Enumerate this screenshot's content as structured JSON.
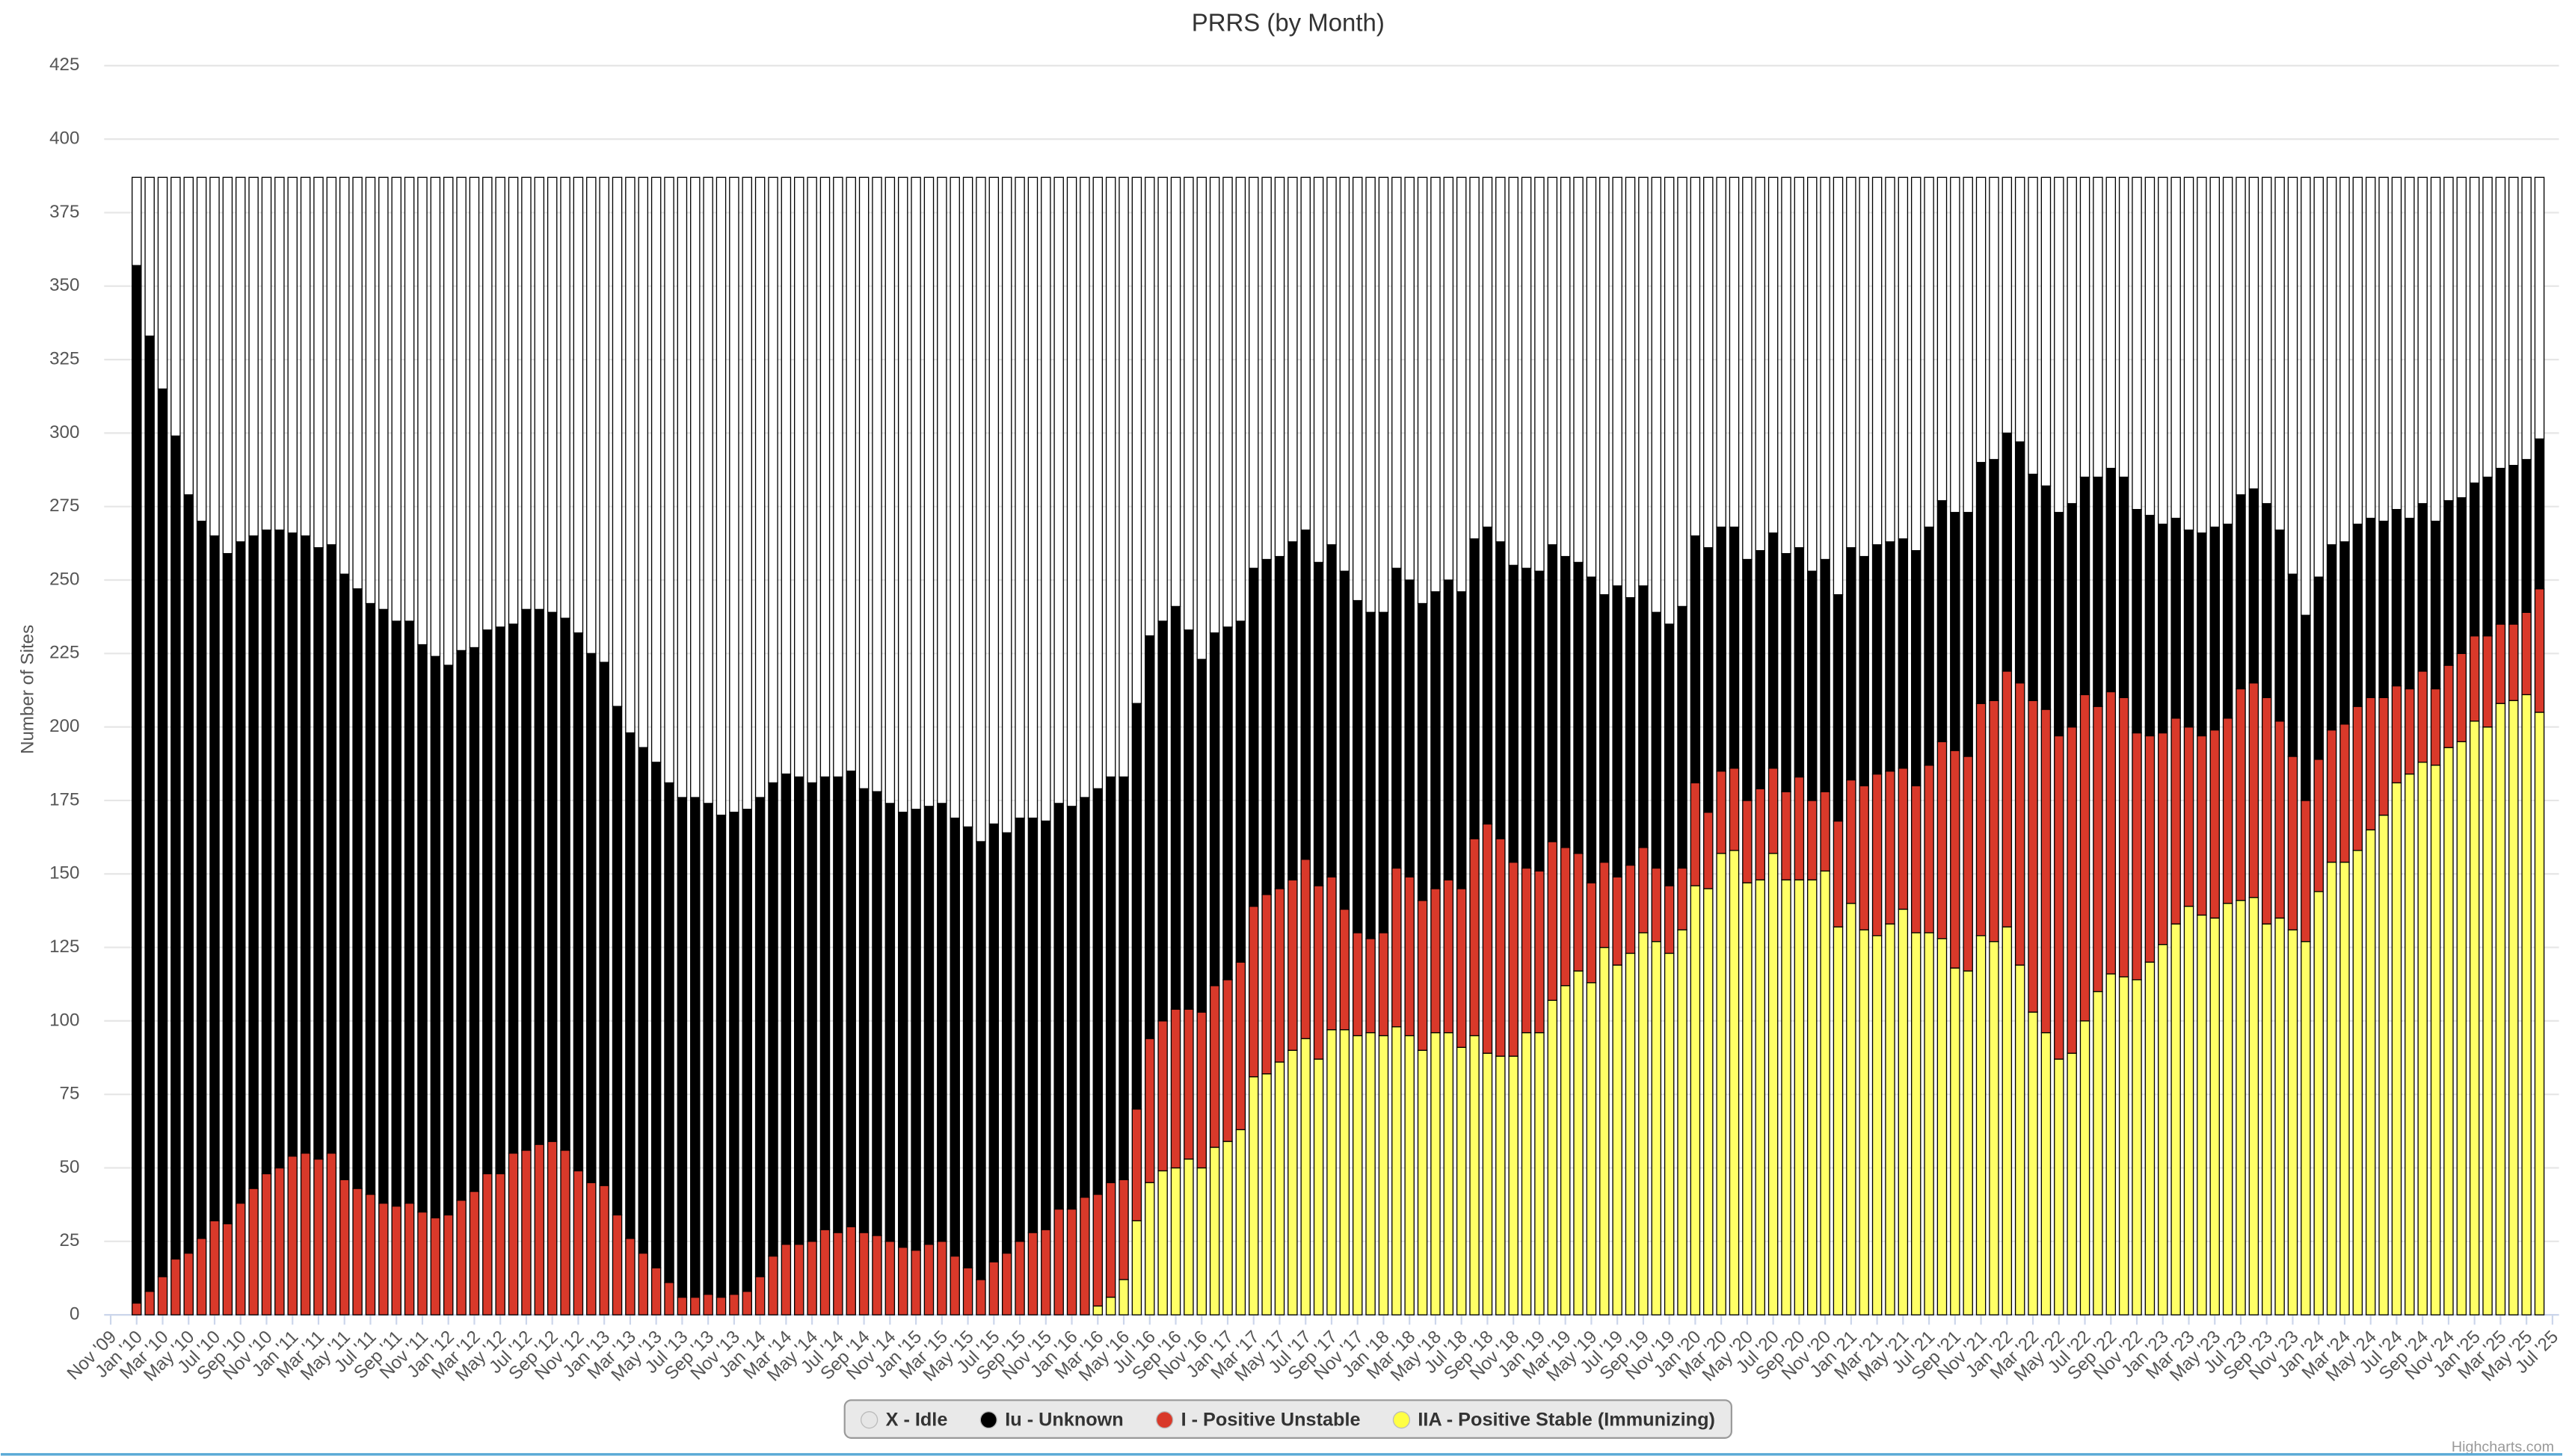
{
  "chart_data": {
    "type": "stacked-bar",
    "title": "PRRS (by Month)",
    "y_axis_label": "Number of Sites",
    "credits": "Highcharts.com",
    "ylim": [
      0,
      425
    ],
    "yticks": [
      0,
      25,
      50,
      75,
      100,
      125,
      150,
      175,
      200,
      225,
      250,
      275,
      300,
      325,
      350,
      375,
      400,
      425
    ],
    "grid": true,
    "legend": "bottom",
    "categories": [
      "Nov '09",
      null,
      "Jan '10",
      null,
      "Mar '10",
      null,
      "May '10",
      null,
      "Jul '10",
      null,
      "Sep '10",
      null,
      "Nov '10",
      null,
      "Jan '11",
      null,
      "Mar '11",
      null,
      "May '11",
      null,
      "Jul '11",
      null,
      "Sep '11",
      null,
      "Nov '11",
      null,
      "Jan '12",
      null,
      "Mar '12",
      null,
      "May '12",
      null,
      "Jul '12",
      null,
      "Sep '12",
      null,
      "Nov '12",
      null,
      "Jan '13",
      null,
      "Mar '13",
      null,
      "May '13",
      null,
      "Jul '13",
      null,
      "Sep '13",
      null,
      "Nov '13",
      null,
      "Jan '14",
      null,
      "Mar '14",
      null,
      "May '14",
      null,
      "Jul '14",
      null,
      "Sep '14",
      null,
      "Nov '14",
      null,
      "Jan '15",
      null,
      "Mar '15",
      null,
      "May '15",
      null,
      "Jul '15",
      null,
      "Sep '15",
      null,
      "Nov '15",
      null,
      "Jan '16",
      null,
      "Mar '16",
      null,
      "May '16",
      null,
      "Jul '16",
      null,
      "Sep '16",
      null,
      "Nov '16",
      null,
      "Jan '17",
      null,
      "Mar '17",
      null,
      "May '17",
      null,
      "Jul '17",
      null,
      "Sep '17",
      null,
      "Nov '17",
      null,
      "Jan '18",
      null,
      "Mar '18",
      null,
      "May '18",
      null,
      "Jul '18",
      null,
      "Sep '18",
      null,
      "Nov '18",
      null,
      "Jan '19",
      null,
      "Mar '19",
      null,
      "May '19",
      null,
      "Jul '19",
      null,
      "Sep '19",
      null,
      "Nov '19",
      null,
      "Jan '20",
      null,
      "Mar '20",
      null,
      "May '20",
      null,
      "Jul '20",
      null,
      "Sep '20",
      null,
      "Nov '20",
      null,
      "Jan '21",
      null,
      "Mar '21",
      null,
      "May '21",
      null,
      "Jul '21",
      null,
      "Sep '21",
      null,
      "Nov '21",
      null,
      "Jan '22",
      null,
      "Mar '22",
      null,
      "May '22",
      null,
      "Jul '22",
      null,
      "Sep '22",
      null,
      "Nov '22",
      null,
      "Jan '23",
      null,
      "Mar '23",
      null,
      "May '23",
      null,
      "Jul '23",
      null,
      "Sep '23",
      null,
      "Nov '23",
      null,
      "Jan '24",
      null,
      "Mar '24",
      null,
      "May '24",
      null,
      "Jul '24",
      null,
      "Sep '24",
      null,
      "Nov '24",
      null,
      "Jan '25",
      null,
      "Mar '25",
      null,
      "May '25",
      null,
      "Jul '25"
    ],
    "series": [
      {
        "name": "X - Idle",
        "color": "#ffffff",
        "legend_color": "#e6e6e6",
        "values": [
          null,
          null,
          30,
          54,
          72,
          88,
          108,
          117,
          122,
          128,
          124,
          122,
          120,
          120,
          121,
          122,
          126,
          125,
          135,
          140,
          145,
          147,
          151,
          151,
          159,
          163,
          166,
          161,
          160,
          154,
          153,
          152,
          147,
          147,
          148,
          150,
          155,
          162,
          165,
          180,
          189,
          194,
          199,
          206,
          211,
          211,
          213,
          217,
          216,
          215,
          211,
          206,
          203,
          204,
          206,
          204,
          204,
          202,
          208,
          209,
          213,
          216,
          215,
          214,
          213,
          218,
          221,
          226,
          220,
          223,
          218,
          218,
          219,
          213,
          214,
          211,
          208,
          204,
          204,
          179,
          156,
          151,
          146,
          154,
          164,
          155,
          153,
          151,
          133,
          130,
          129,
          124,
          120,
          131,
          125,
          134,
          144,
          148,
          148,
          133,
          137,
          145,
          141,
          137,
          141,
          123,
          119,
          124,
          132,
          133,
          134,
          125,
          129,
          131,
          136,
          142,
          139,
          143,
          139,
          148,
          152,
          146,
          122,
          126,
          119,
          119,
          130,
          127,
          121,
          128,
          126,
          134,
          130,
          142,
          126,
          129,
          125,
          124,
          123,
          127,
          119,
          110,
          114,
          114,
          97,
          96,
          87,
          90,
          101,
          105,
          114,
          111,
          102,
          102,
          99,
          102,
          113,
          115,
          118,
          116,
          120,
          121,
          119,
          118,
          108,
          106,
          111,
          120,
          135,
          149,
          136,
          125,
          124,
          118,
          116,
          117,
          113,
          116,
          111,
          117,
          110,
          109,
          104,
          102,
          99,
          98,
          96,
          89,
          null
        ]
      },
      {
        "name": "Iu - Unknown",
        "color": "#000000",
        "legend_color": "#000000",
        "values": [
          null,
          null,
          353,
          325,
          302,
          280,
          258,
          244,
          233,
          228,
          225,
          222,
          219,
          217,
          212,
          210,
          208,
          207,
          206,
          204,
          201,
          202,
          199,
          198,
          193,
          191,
          187,
          187,
          185,
          185,
          186,
          180,
          184,
          182,
          180,
          181,
          183,
          180,
          178,
          173,
          172,
          172,
          172,
          170,
          170,
          170,
          167,
          164,
          164,
          164,
          163,
          161,
          160,
          159,
          156,
          154,
          155,
          155,
          151,
          151,
          149,
          148,
          150,
          149,
          149,
          149,
          150,
          149,
          149,
          143,
          144,
          141,
          139,
          138,
          137,
          136,
          138,
          138,
          137,
          138,
          137,
          136,
          137,
          129,
          120,
          120,
          120,
          116,
          115,
          114,
          113,
          115,
          112,
          110,
          113,
          115,
          113,
          111,
          109,
          102,
          101,
          101,
          101,
          102,
          101,
          102,
          101,
          101,
          101,
          102,
          102,
          101,
          99,
          99,
          104,
          91,
          99,
          91,
          89,
          87,
          89,
          89,
          84,
          90,
          83,
          82,
          82,
          81,
          80,
          81,
          78,
          78,
          79,
          77,
          79,
          78,
          78,
          78,
          78,
          80,
          81,
          82,
          81,
          83,
          82,
          82,
          81,
          82,
          77,
          76,
          76,
          76,
          74,
          78,
          76,
          75,
          76,
          75,
          71,
          68,
          67,
          69,
          69,
          66,
          66,
          66,
          66,
          65,
          62,
          63,
          62,
          63,
          62,
          62,
          61,
          60,
          60,
          58,
          57,
          57,
          56,
          53,
          52,
          54,
          53,
          54,
          52,
          51,
          null
        ]
      },
      {
        "name": "I - Positive Unstable",
        "color": "#d9392a",
        "legend_color": "#d9392a",
        "values": [
          null,
          null,
          4,
          8,
          13,
          19,
          21,
          26,
          32,
          31,
          38,
          43,
          48,
          50,
          54,
          55,
          53,
          55,
          46,
          43,
          41,
          38,
          37,
          38,
          35,
          33,
          34,
          39,
          42,
          48,
          48,
          55,
          56,
          58,
          59,
          56,
          49,
          45,
          44,
          34,
          26,
          21,
          16,
          11,
          6,
          6,
          7,
          6,
          7,
          8,
          13,
          20,
          24,
          24,
          25,
          29,
          28,
          30,
          28,
          27,
          25,
          23,
          22,
          24,
          25,
          20,
          16,
          12,
          18,
          21,
          25,
          28,
          29,
          36,
          36,
          40,
          38,
          39,
          34,
          38,
          49,
          51,
          54,
          51,
          53,
          55,
          55,
          57,
          58,
          61,
          59,
          58,
          61,
          59,
          52,
          41,
          35,
          32,
          35,
          54,
          54,
          51,
          49,
          52,
          54,
          67,
          78,
          74,
          66,
          56,
          55,
          54,
          47,
          40,
          34,
          29,
          30,
          30,
          29,
          25,
          23,
          21,
          35,
          26,
          28,
          28,
          28,
          31,
          29,
          30,
          35,
          27,
          27,
          36,
          42,
          49,
          55,
          52,
          48,
          50,
          57,
          67,
          74,
          73,
          79,
          82,
          87,
          96,
          106,
          110,
          110,
          111,
          111,
          97,
          96,
          95,
          84,
          77,
          72,
          70,
          61,
          61,
          64,
          63,
          72,
          73,
          77,
          67,
          59,
          48,
          45,
          45,
          47,
          49,
          45,
          40,
          33,
          29,
          31,
          26,
          28,
          30,
          29,
          31,
          27,
          26,
          28,
          42,
          null
        ]
      },
      {
        "name": "IIA - Positive Stable (Immunizing)",
        "color": "#ffff66",
        "legend_color": "#ffff44",
        "values": [
          null,
          null,
          0,
          0,
          0,
          0,
          0,
          0,
          0,
          0,
          0,
          0,
          0,
          0,
          0,
          0,
          0,
          0,
          0,
          0,
          0,
          0,
          0,
          0,
          0,
          0,
          0,
          0,
          0,
          0,
          0,
          0,
          0,
          0,
          0,
          0,
          0,
          0,
          0,
          0,
          0,
          0,
          0,
          0,
          0,
          0,
          0,
          0,
          0,
          0,
          0,
          0,
          0,
          0,
          0,
          0,
          0,
          0,
          0,
          0,
          0,
          0,
          0,
          0,
          0,
          0,
          0,
          0,
          0,
          0,
          0,
          0,
          0,
          0,
          0,
          0,
          3,
          6,
          12,
          32,
          45,
          49,
          50,
          53,
          50,
          57,
          59,
          63,
          81,
          82,
          86,
          90,
          94,
          87,
          97,
          97,
          95,
          96,
          95,
          98,
          95,
          90,
          96,
          96,
          91,
          95,
          89,
          88,
          88,
          96,
          96,
          107,
          112,
          117,
          113,
          125,
          119,
          123,
          130,
          127,
          123,
          131,
          146,
          145,
          157,
          158,
          147,
          148,
          157,
          148,
          148,
          148,
          151,
          132,
          140,
          131,
          129,
          133,
          138,
          130,
          130,
          128,
          118,
          117,
          129,
          127,
          132,
          119,
          103,
          96,
          87,
          89,
          100,
          110,
          116,
          115,
          114,
          120,
          126,
          133,
          139,
          136,
          135,
          140,
          141,
          142,
          133,
          135,
          131,
          127,
          144,
          154,
          154,
          158,
          165,
          170,
          181,
          184,
          188,
          187,
          193,
          195,
          202,
          200,
          208,
          209,
          211,
          205,
          null
        ]
      }
    ]
  }
}
